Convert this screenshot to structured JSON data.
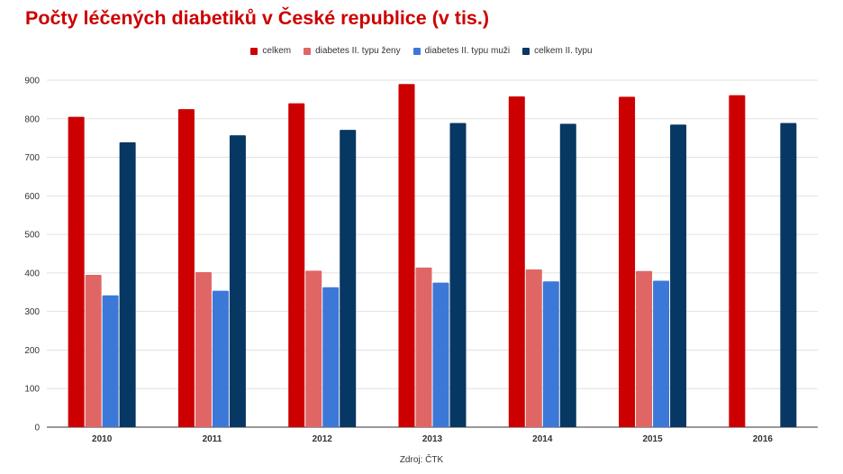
{
  "chart_data": {
    "type": "bar",
    "title": "Počty léčených diabetiků v České republice (v tis.)",
    "source": "Zdroj: ČTK",
    "categories": [
      "2010",
      "2011",
      "2012",
      "2013",
      "2014",
      "2015",
      "2016"
    ],
    "series": [
      {
        "name": "celkem",
        "color": "#cc0000",
        "values": [
          805,
          825,
          840,
          890,
          858,
          857,
          861
        ]
      },
      {
        "name": "diabetes II. typu ženy",
        "color": "#e06666",
        "values": [
          395,
          402,
          406,
          414,
          409,
          405,
          null
        ]
      },
      {
        "name": "diabetes II. typu muži",
        "color": "#3c78d8",
        "values": [
          342,
          354,
          363,
          375,
          378,
          380,
          null
        ]
      },
      {
        "name": "celkem II. typu",
        "color": "#073763",
        "values": [
          739,
          757,
          771,
          789,
          787,
          785,
          789
        ]
      }
    ],
    "ylim": [
      0,
      900
    ],
    "yticks": [
      0,
      100,
      200,
      300,
      400,
      500,
      600,
      700,
      800,
      900
    ],
    "xlabel": "",
    "ylabel": "",
    "grid": true,
    "legend_position": "top-center"
  }
}
